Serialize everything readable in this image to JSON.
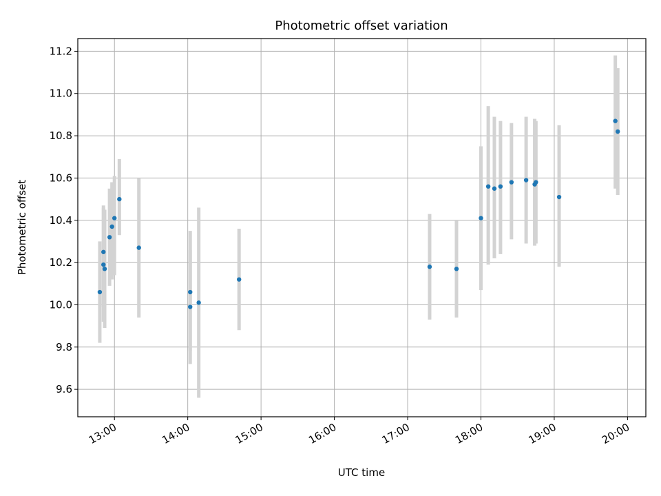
{
  "chart_data": {
    "type": "scatter",
    "title": "Photometric offset variation",
    "xlabel": "UTC time",
    "ylabel": "Photometric offset",
    "x_tick_labels": [
      "13:00",
      "14:00",
      "15:00",
      "16:00",
      "17:00",
      "18:00",
      "19:00",
      "20:00"
    ],
    "x_tick_hours": [
      13,
      14,
      15,
      16,
      17,
      18,
      19,
      20
    ],
    "y_ticks": [
      9.6,
      9.8,
      10.0,
      10.2,
      10.4,
      10.6,
      10.8,
      11.0,
      11.2
    ],
    "y_tick_labels": [
      "9.6",
      "9.8",
      "10.0",
      "10.2",
      "10.4",
      "10.6",
      "10.8",
      "11.0",
      "11.2"
    ],
    "xlim": [
      "12:30",
      "20:15"
    ],
    "ylim": [
      9.47,
      11.26
    ],
    "grid": true,
    "marker_color": "#1f77b4",
    "errorbar_color": "#d3d3d3",
    "points": [
      {
        "t": "12:48",
        "y": 10.06,
        "lo": 9.82,
        "hi": 10.3
      },
      {
        "t": "12:51",
        "y": 10.19,
        "lo": 9.92,
        "hi": 10.46
      },
      {
        "t": "12:51",
        "y": 10.25,
        "lo": 9.99,
        "hi": 10.47
      },
      {
        "t": "12:52",
        "y": 10.17,
        "lo": 9.89,
        "hi": 10.45
      },
      {
        "t": "12:56",
        "y": 10.32,
        "lo": 10.09,
        "hi": 10.55
      },
      {
        "t": "12:58",
        "y": 10.37,
        "lo": 10.12,
        "hi": 10.58
      },
      {
        "t": "13:00",
        "y": 10.41,
        "lo": 10.14,
        "hi": 10.61
      },
      {
        "t": "13:04",
        "y": 10.5,
        "lo": 10.33,
        "hi": 10.69
      },
      {
        "t": "13:20",
        "y": 10.27,
        "lo": 9.94,
        "hi": 10.6
      },
      {
        "t": "14:02",
        "y": 10.06,
        "lo": 9.78,
        "hi": 10.35
      },
      {
        "t": "14:02",
        "y": 9.99,
        "lo": 9.72,
        "hi": 10.26
      },
      {
        "t": "14:09",
        "y": 10.01,
        "lo": 9.56,
        "hi": 10.46
      },
      {
        "t": "14:42",
        "y": 10.12,
        "lo": 9.88,
        "hi": 10.36
      },
      {
        "t": "17:18",
        "y": 10.18,
        "lo": 9.93,
        "hi": 10.43
      },
      {
        "t": "17:40",
        "y": 10.17,
        "lo": 9.94,
        "hi": 10.4
      },
      {
        "t": "18:00",
        "y": 10.41,
        "lo": 10.07,
        "hi": 10.75
      },
      {
        "t": "18:06",
        "y": 10.56,
        "lo": 10.19,
        "hi": 10.94
      },
      {
        "t": "18:11",
        "y": 10.55,
        "lo": 10.22,
        "hi": 10.89
      },
      {
        "t": "18:16",
        "y": 10.56,
        "lo": 10.24,
        "hi": 10.87
      },
      {
        "t": "18:25",
        "y": 10.58,
        "lo": 10.31,
        "hi": 10.86
      },
      {
        "t": "18:37",
        "y": 10.59,
        "lo": 10.29,
        "hi": 10.89
      },
      {
        "t": "18:44",
        "y": 10.57,
        "lo": 10.28,
        "hi": 10.88
      },
      {
        "t": "18:45",
        "y": 10.58,
        "lo": 10.29,
        "hi": 10.87
      },
      {
        "t": "19:04",
        "y": 10.51,
        "lo": 10.18,
        "hi": 10.85
      },
      {
        "t": "19:50",
        "y": 10.87,
        "lo": 10.55,
        "hi": 11.18
      },
      {
        "t": "19:52",
        "y": 10.82,
        "lo": 10.52,
        "hi": 11.12
      }
    ]
  }
}
